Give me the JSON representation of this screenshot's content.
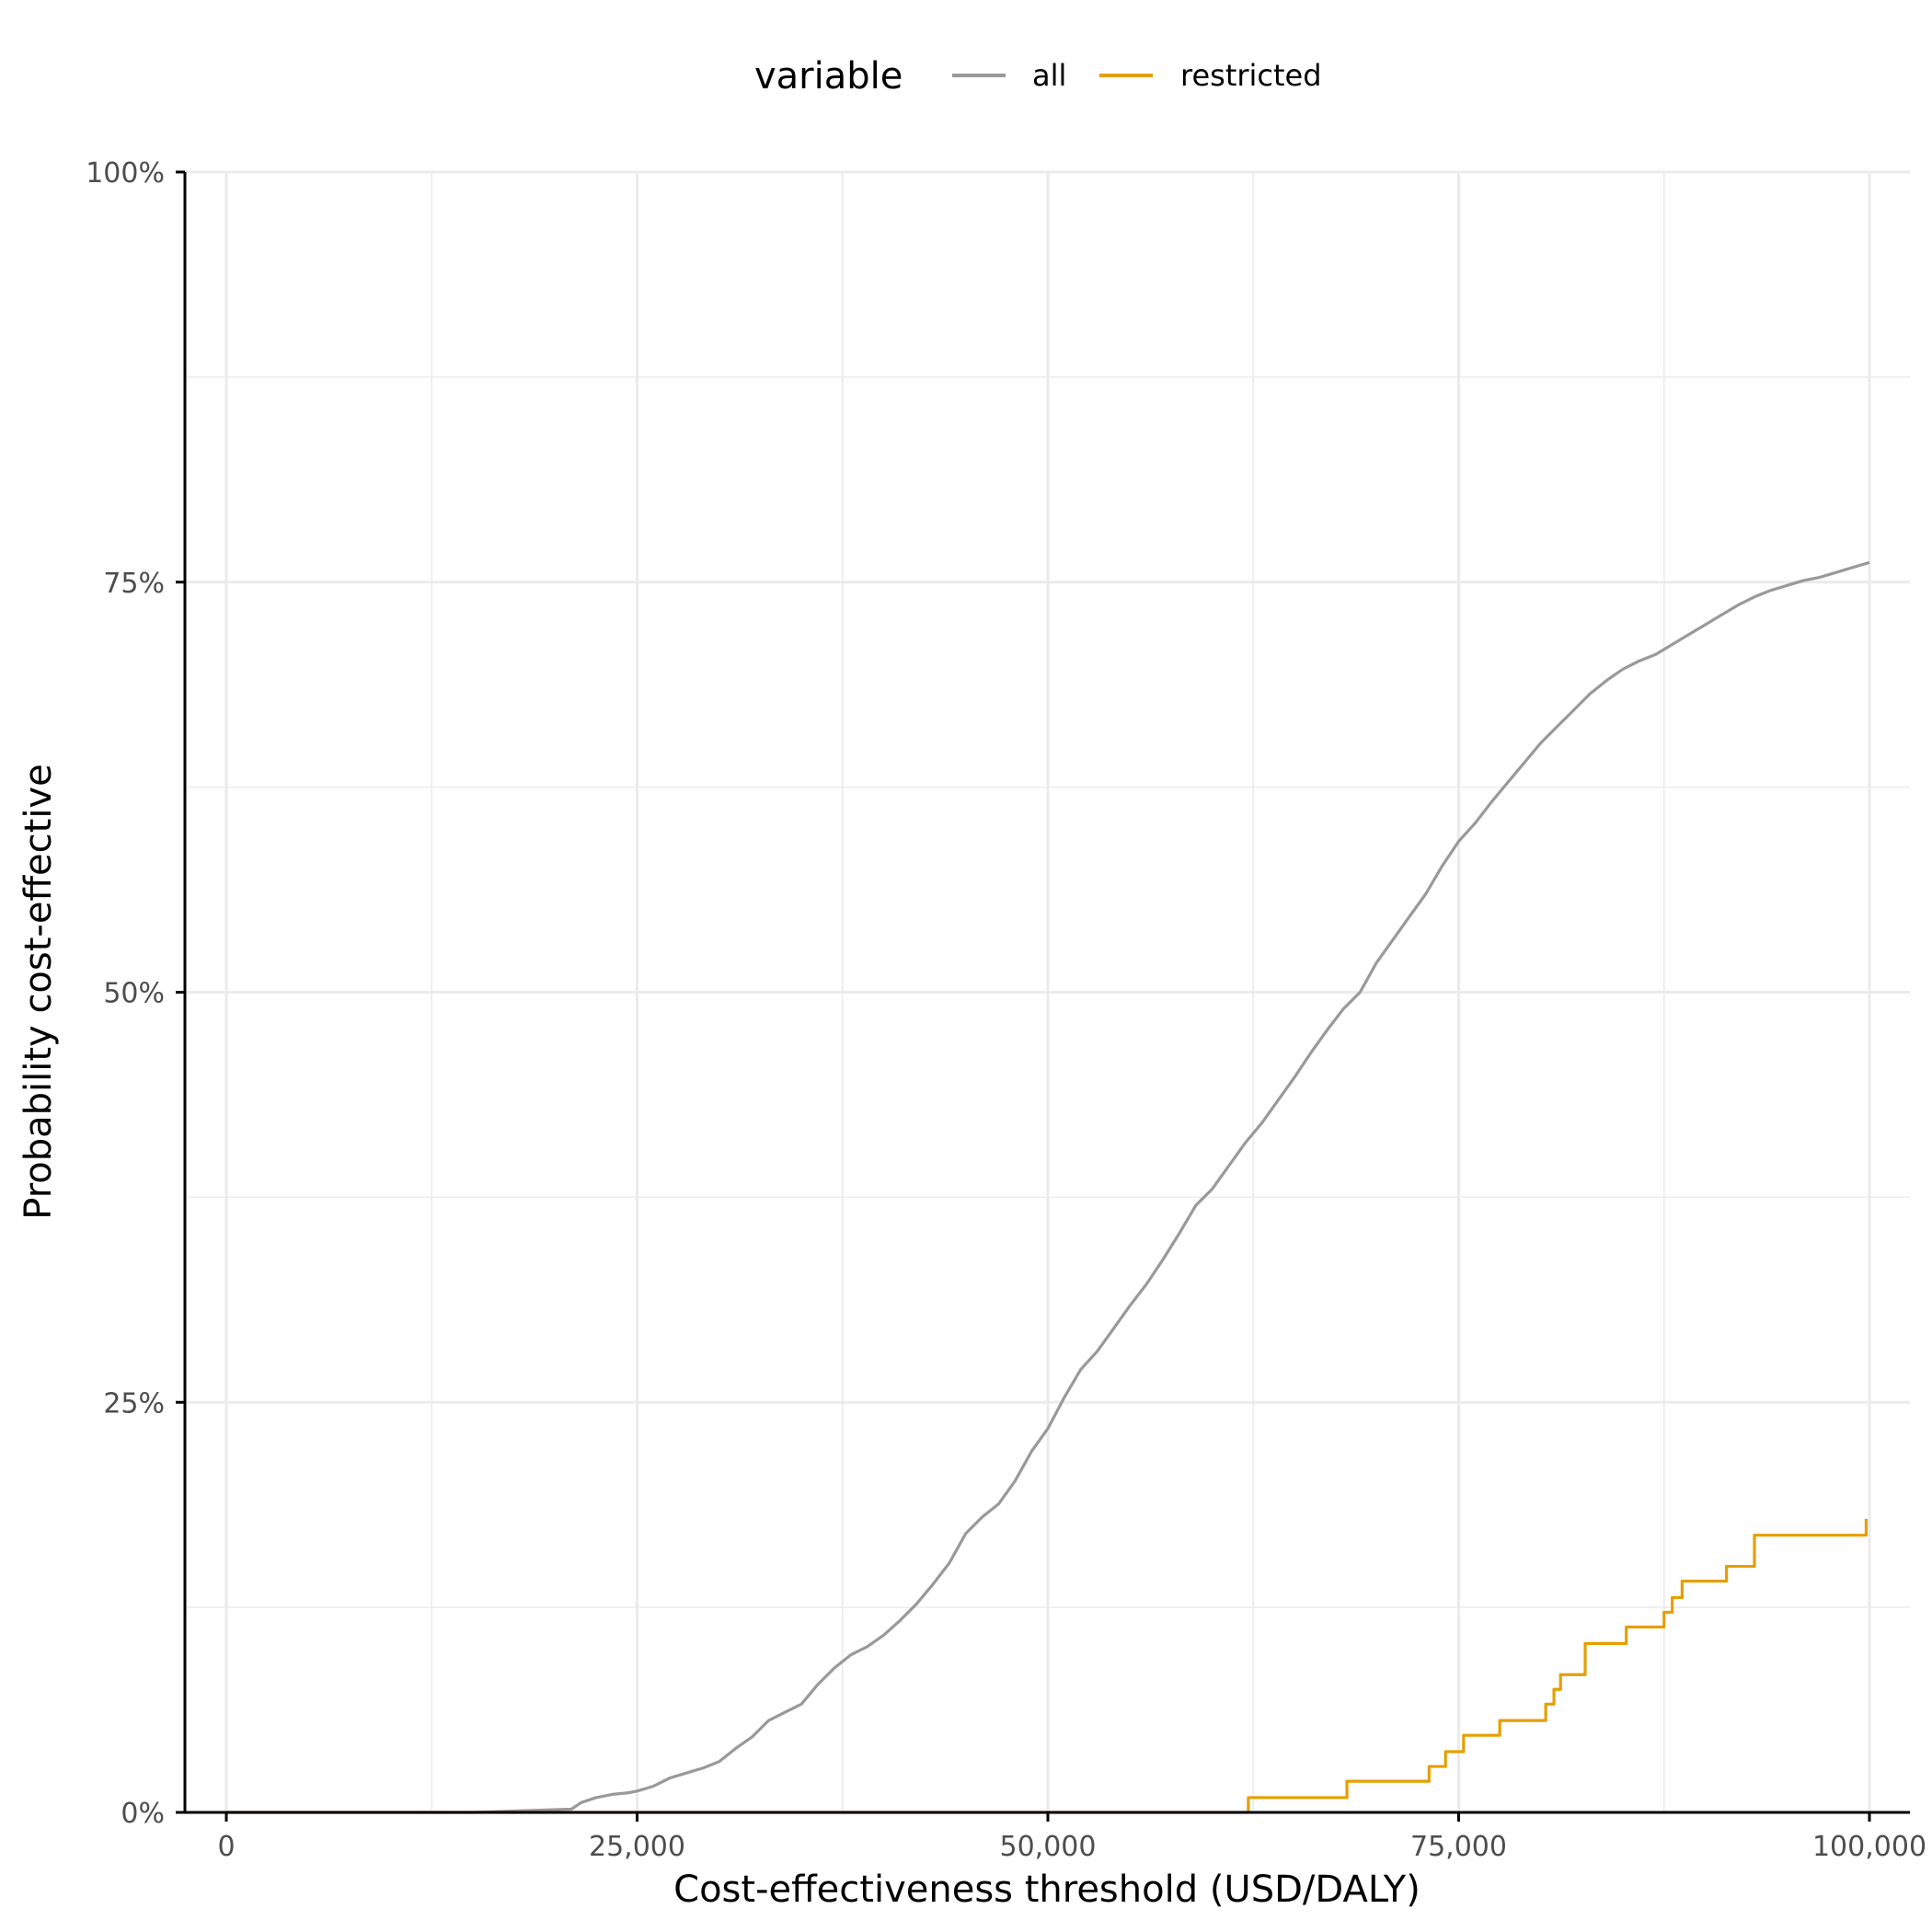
{
  "chart_data": {
    "type": "line",
    "title": "",
    "xlabel": "Cost-effectiveness threshold (USD/DALY)",
    "ylabel": "Probability cost-effective",
    "xlim": [
      0,
      100000
    ],
    "ylim": [
      0,
      1
    ],
    "x_ticks": [
      0,
      25000,
      50000,
      75000,
      100000
    ],
    "x_tick_labels": [
      "0",
      "25,000",
      "50,000",
      "75,000",
      "100,000"
    ],
    "y_ticks": [
      0,
      0.25,
      0.5,
      0.75,
      1.0
    ],
    "y_tick_labels": [
      "0%",
      "25%",
      "50%",
      "75%",
      "100%"
    ],
    "grid": true,
    "legend": {
      "title": "variable",
      "position": "top"
    },
    "series": [
      {
        "name": "all",
        "color": "#999999",
        "step": false,
        "x": [
          0,
          15000,
          18000,
          21000,
          21600,
          22500,
          23500,
          24500,
          25000,
          26000,
          27000,
          28000,
          29000,
          30000,
          31000,
          32000,
          33000,
          34000,
          35000,
          36000,
          37000,
          38000,
          39000,
          40000,
          41000,
          42000,
          43000,
          44000,
          45000,
          46000,
          47000,
          48000,
          49000,
          50000,
          51000,
          52000,
          53000,
          54000,
          55000,
          56000,
          57000,
          58000,
          59000,
          60000,
          61000,
          62000,
          63000,
          64000,
          65000,
          66000,
          67000,
          68000,
          69000,
          70000,
          71000,
          72000,
          73000,
          74000,
          75000,
          76000,
          77000,
          78000,
          79000,
          80000,
          81000,
          82000,
          83000,
          84000,
          85000,
          86000,
          87000,
          88000,
          89000,
          90000,
          91000,
          92000,
          93000,
          94000,
          95000,
          96000,
          97000,
          98000,
          99000,
          100000
        ],
        "y": [
          0,
          0,
          0.001,
          0.002,
          0.006,
          0.009,
          0.011,
          0.012,
          0.013,
          0.016,
          0.021,
          0.024,
          0.027,
          0.031,
          0.039,
          0.046,
          0.056,
          0.061,
          0.066,
          0.078,
          0.088,
          0.096,
          0.101,
          0.108,
          0.117,
          0.127,
          0.139,
          0.152,
          0.17,
          0.18,
          0.188,
          0.202,
          0.22,
          0.234,
          0.253,
          0.27,
          0.281,
          0.295,
          0.309,
          0.322,
          0.337,
          0.353,
          0.37,
          0.38,
          0.394,
          0.408,
          0.42,
          0.434,
          0.448,
          0.463,
          0.477,
          0.49,
          0.5,
          0.518,
          0.532,
          0.546,
          0.56,
          0.577,
          0.592,
          0.603,
          0.616,
          0.628,
          0.64,
          0.652,
          0.662,
          0.672,
          0.682,
          0.69,
          0.697,
          0.702,
          0.706,
          0.712,
          0.718,
          0.724,
          0.73,
          0.736,
          0.741,
          0.745,
          0.748,
          0.751,
          0.753,
          0.756,
          0.759,
          0.762
        ]
      },
      {
        "name": "restricted",
        "color": "#E69F00",
        "step": true,
        "x": [
          0,
          62200,
          68200,
          73200,
          74200,
          75300,
          77500,
          80300,
          80800,
          81200,
          82700,
          85200,
          87500,
          88000,
          88600,
          91300,
          93000,
          99800
        ],
        "y": [
          0,
          0.009,
          0.019,
          0.028,
          0.037,
          0.047,
          0.056,
          0.066,
          0.075,
          0.084,
          0.103,
          0.113,
          0.122,
          0.131,
          0.141,
          0.15,
          0.169,
          0.179
        ]
      }
    ]
  }
}
